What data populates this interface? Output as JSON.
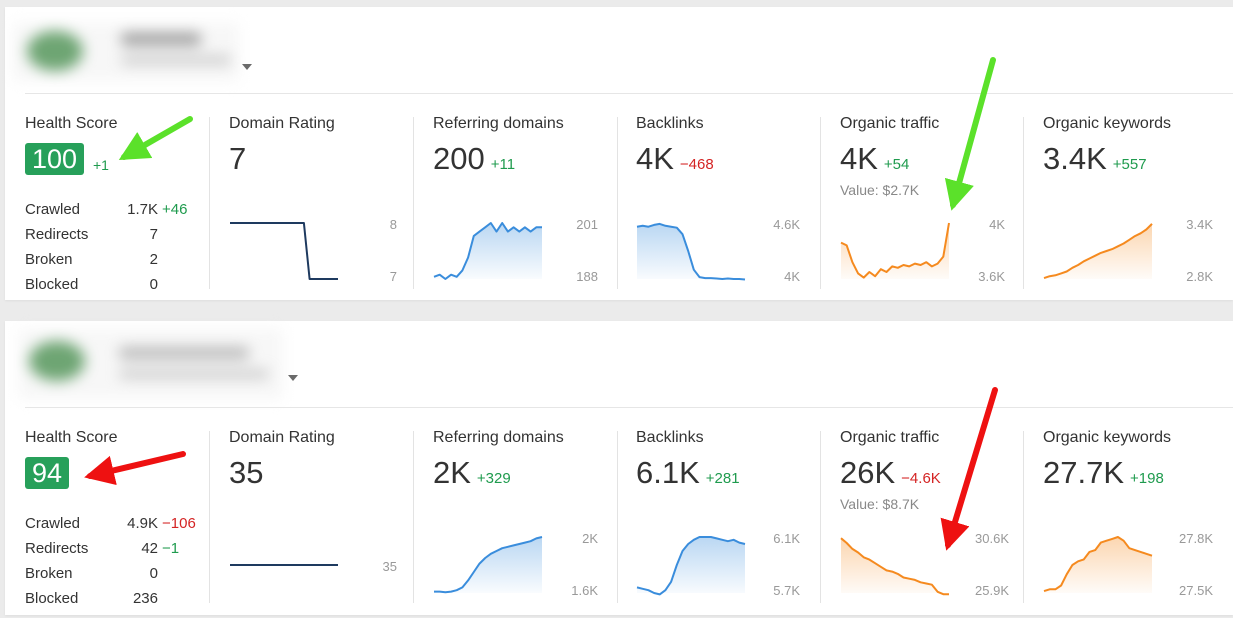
{
  "colors": {
    "green": "#1f9b4e",
    "red": "#d42424",
    "badge": "#27a05a",
    "navy": "#1e3a5f",
    "blue": "#3a8ddc",
    "orange": "#f58a1f"
  },
  "projects": [
    {
      "health": {
        "label": "Health Score",
        "score": "100",
        "delta": "+1",
        "stats": [
          {
            "label": "Crawled",
            "value": "1.7K",
            "delta": "+46"
          },
          {
            "label": "Redirects",
            "value": "7",
            "delta": ""
          },
          {
            "label": "Broken",
            "value": "2",
            "delta": ""
          },
          {
            "label": "Blocked",
            "value": "0",
            "delta": ""
          }
        ]
      },
      "metrics": [
        {
          "label": "Domain Rating",
          "value": "7",
          "delta": "",
          "sub": "",
          "axis_top": "8",
          "axis_bottom": "7",
          "chart": {
            "color": "navy",
            "fill": false,
            "min": 7,
            "max": 8,
            "points": [
              8,
              8,
              8,
              8,
              8,
              8,
              8,
              8,
              8,
              8,
              8,
              8,
              8,
              8,
              7,
              7,
              7,
              7,
              7,
              7
            ]
          }
        },
        {
          "label": "Referring domains",
          "value": "200",
          "delta": "+11",
          "sub": "",
          "axis_top": "201",
          "axis_bottom": "188",
          "chart": {
            "color": "blue",
            "fill": true,
            "min": 188,
            "max": 201,
            "points": [
              188.5,
              189,
              188,
              189,
              188.5,
              190,
              193,
              198,
              199,
              200,
              201,
              199,
              201,
              199,
              200,
              199,
              200,
              199,
              200,
              200
            ]
          }
        },
        {
          "label": "Backlinks",
          "value": "4K",
          "delta": "−468",
          "sub": "",
          "axis_top": "4.6K",
          "axis_bottom": "4K",
          "chart": {
            "color": "blue",
            "fill": true,
            "min": 4000,
            "max": 4600,
            "points": [
              4560,
              4570,
              4560,
              4580,
              4590,
              4570,
              4560,
              4550,
              4480,
              4300,
              4100,
              4020,
              4010,
              4010,
              4005,
              4000,
              4005,
              4000,
              4000,
              3995
            ]
          }
        },
        {
          "label": "Organic traffic",
          "value": "4K",
          "delta": "+54",
          "sub": "Value: $2.7K",
          "axis_top": "4K",
          "axis_bottom": "3.6K",
          "chart": {
            "color": "orange",
            "fill": true,
            "min": 3600,
            "max": 4000,
            "points": [
              3860,
              3840,
              3720,
              3640,
              3610,
              3650,
              3620,
              3670,
              3650,
              3690,
              3680,
              3700,
              3690,
              3710,
              3700,
              3720,
              3690,
              3710,
              3760,
              4000
            ]
          }
        },
        {
          "label": "Organic keywords",
          "value": "3.4K",
          "delta": "+557",
          "sub": "",
          "axis_top": "3.4K",
          "axis_bottom": "2.8K",
          "chart": {
            "color": "orange",
            "fill": true,
            "min": 2800,
            "max": 3400,
            "points": [
              2810,
              2830,
              2840,
              2860,
              2880,
              2920,
              2950,
              2990,
              3020,
              3050,
              3080,
              3100,
              3120,
              3150,
              3180,
              3220,
              3260,
              3290,
              3330,
              3390
            ]
          }
        }
      ]
    },
    {
      "health": {
        "label": "Health Score",
        "score": "94",
        "delta": "",
        "stats": [
          {
            "label": "Crawled",
            "value": "4.9K",
            "delta": "−106"
          },
          {
            "label": "Redirects",
            "value": "42",
            "delta": "−1"
          },
          {
            "label": "Broken",
            "value": "0",
            "delta": ""
          },
          {
            "label": "Blocked",
            "value": "236",
            "delta": ""
          }
        ]
      },
      "metrics": [
        {
          "label": "Domain Rating",
          "value": "35",
          "delta": "",
          "sub": "",
          "axis_top": "",
          "axis_bottom": "35",
          "chart": {
            "color": "navy",
            "fill": false,
            "min": 34,
            "max": 36,
            "points": [
              35,
              35,
              35,
              35,
              35,
              35,
              35,
              35,
              35,
              35,
              35,
              35,
              35,
              35,
              35,
              35,
              35,
              35,
              35,
              35
            ]
          }
        },
        {
          "label": "Referring domains",
          "value": "2K",
          "delta": "+329",
          "sub": "",
          "axis_top": "2K",
          "axis_bottom": "1.6K",
          "chart": {
            "color": "blue",
            "fill": true,
            "min": 1600,
            "max": 2000,
            "points": [
              1610,
              1610,
              1605,
              1610,
              1620,
              1640,
              1690,
              1750,
              1810,
              1850,
              1880,
              1900,
              1920,
              1930,
              1940,
              1950,
              1960,
              1970,
              1990,
              2000
            ]
          }
        },
        {
          "label": "Backlinks",
          "value": "6.1K",
          "delta": "+281",
          "sub": "",
          "axis_top": "6.1K",
          "axis_bottom": "5.7K",
          "chart": {
            "color": "blue",
            "fill": true,
            "min": 5700,
            "max": 6100,
            "points": [
              5740,
              5730,
              5720,
              5700,
              5690,
              5720,
              5780,
              5900,
              6000,
              6050,
              6080,
              6100,
              6100,
              6100,
              6090,
              6080,
              6070,
              6080,
              6060,
              6050
            ]
          }
        },
        {
          "label": "Organic traffic",
          "value": "26K",
          "delta": "−4.6K",
          "sub": "Value: $8.7K",
          "axis_top": "30.6K",
          "axis_bottom": "25.9K",
          "chart": {
            "color": "orange",
            "fill": true,
            "min": 25900,
            "max": 30600,
            "points": [
              30500,
              30100,
              29600,
              29300,
              28900,
              28700,
              28400,
              28100,
              27800,
              27700,
              27500,
              27200,
              27100,
              27000,
              26800,
              26700,
              26600,
              26000,
              25800,
              25800
            ]
          }
        },
        {
          "label": "Organic keywords",
          "value": "27.7K",
          "delta": "+198",
          "sub": "",
          "axis_top": "27.8K",
          "axis_bottom": "27.5K",
          "chart": {
            "color": "orange",
            "fill": true,
            "min": 27500,
            "max": 27800,
            "points": [
              27510,
              27520,
              27520,
              27540,
              27600,
              27650,
              27670,
              27680,
              27720,
              27730,
              27770,
              27780,
              27790,
              27800,
              27780,
              27740,
              27730,
              27720,
              27710,
              27700
            ]
          }
        }
      ]
    }
  ]
}
